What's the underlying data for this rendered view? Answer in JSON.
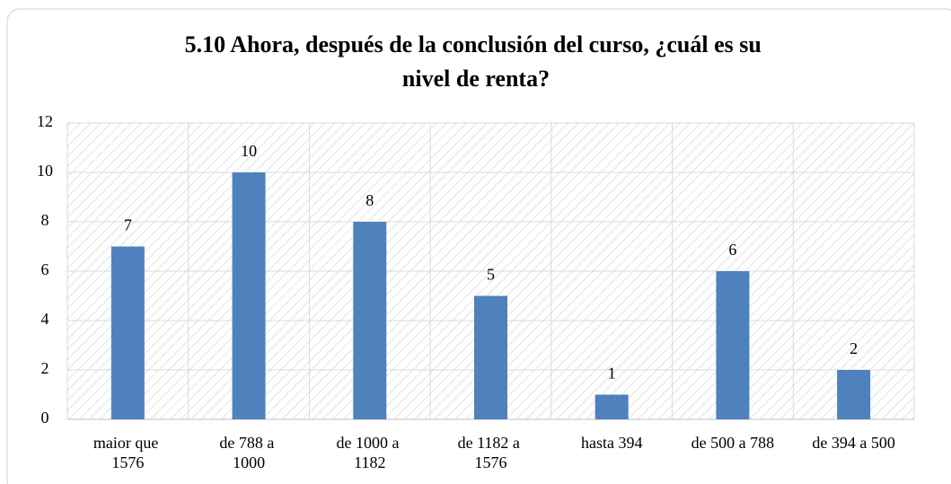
{
  "chart_data": {
    "type": "bar",
    "title": "5.10 Ahora, después de la conclusión del curso, ¿cuál es su nivel de renta?",
    "categories": [
      "maior que 1576",
      "de 788 a 1000",
      "de 1000 a 1182",
      "de 1182 a 1576",
      "hasta 394",
      "de 500 a 788",
      "de 394 a 500"
    ],
    "values": [
      7,
      10,
      8,
      5,
      1,
      6,
      2
    ],
    "color": "#4f81bd",
    "ylim": [
      0,
      12
    ],
    "yticks": [
      0,
      2,
      4,
      6,
      8,
      10,
      12
    ],
    "grid": true
  }
}
